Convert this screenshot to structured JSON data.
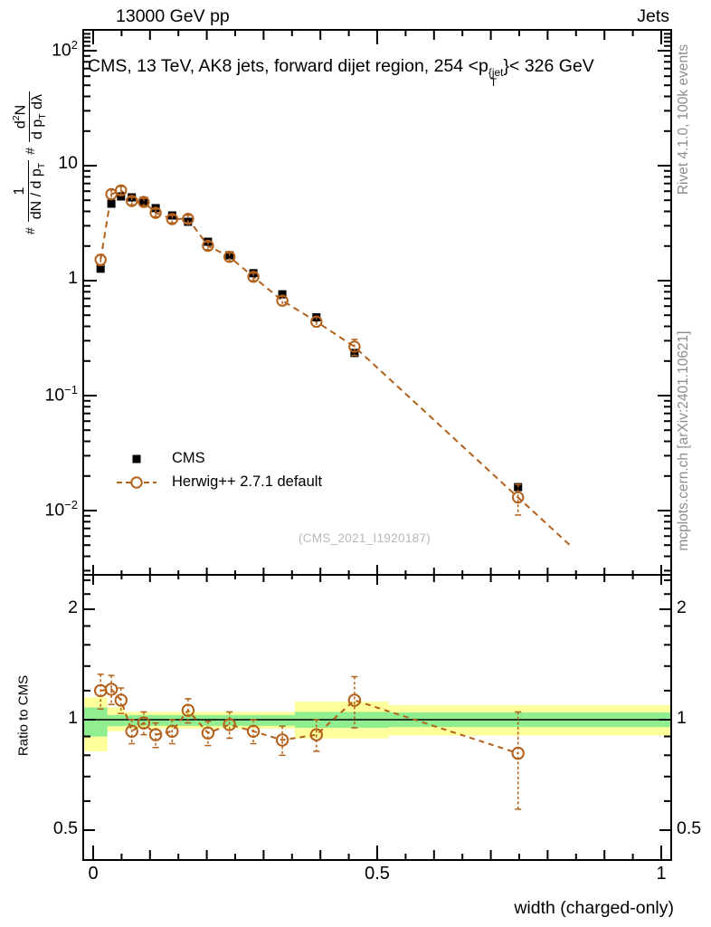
{
  "header": {
    "beam_label": "13000 GeV pp",
    "process_label": "Jets"
  },
  "title": {
    "prefix": "CMS, 13 TeV, AK8 jets, forward dijet region, 254 <p",
    "sup": "{jet",
    "sub": "T",
    "suffix": "}< 326 GeV"
  },
  "axis_label": {
    "hash1": "#",
    "frac1_num": "1",
    "frac1_den": "dN / d p",
    "frac1_den_sub": "T",
    "hash2": "#",
    "frac2_num_a": "d",
    "frac2_num_sup": "2",
    "frac2_num_b": "N",
    "frac2_den_a": "d p",
    "frac2_den_sub": "T",
    "frac2_den_b": " dλ"
  },
  "right_labels": {
    "rivet": "Rivet 4.1.0,  100k events",
    "mcplots": "mcplots.cern.ch [arXiv:2401.10621]"
  },
  "legend": {
    "cms": "CMS",
    "herwig": "Herwig++ 2.7.1 default"
  },
  "watermark": "(CMS_2021_I1920187)",
  "ratio_axis_label": "Ratio to CMS",
  "xaxis_title": "width (charged-only)",
  "chart_data": {
    "type": "line",
    "title": "CMS, 13 TeV, AK8 jets, forward dijet region, 254 < pT(jet) < 326 GeV",
    "xlabel": "width (charged-only)",
    "ylabel": "# 1/(dN/dpT) # d2N/(dpT dLambda)",
    "x_range": [
      0,
      1
    ],
    "y_scale": "log",
    "main_y_range": [
      0.0028,
      150
    ],
    "ratio_y_range": [
      0.414,
      2.48
    ],
    "x": [
      0.013,
      0.032,
      0.049,
      0.068,
      0.089,
      0.11,
      0.139,
      0.167,
      0.202,
      0.24,
      0.282,
      0.333,
      0.393,
      0.46,
      0.748
    ],
    "series": [
      {
        "name": "CMS",
        "marker": "filled-square",
        "color": "#000000",
        "values": [
          1.27,
          4.67,
          5.4,
          5.3,
          4.93,
          4.27,
          3.69,
          3.25,
          2.18,
          1.66,
          1.16,
          0.76,
          0.48,
          0.235,
          0.016
        ]
      },
      {
        "name": "Herwig++ 2.7.1 default",
        "marker": "open-circle",
        "line": "dashed",
        "color": "#b3601a",
        "values": [
          1.52,
          5.65,
          6.1,
          4.93,
          4.83,
          3.89,
          3.43,
          3.45,
          2.01,
          1.61,
          1.08,
          0.67,
          0.44,
          0.266,
          0.013
        ]
      }
    ],
    "ratio": {
      "name": "Herwig++ / CMS",
      "values": [
        1.2,
        1.21,
        1.13,
        0.93,
        0.98,
        0.91,
        0.93,
        1.06,
        0.92,
        0.97,
        0.93,
        0.88,
        0.91,
        1.13,
        0.81
      ],
      "errors": [
        0.13,
        0.11,
        0.09,
        0.07,
        0.07,
        0.07,
        0.07,
        0.08,
        0.07,
        0.08,
        0.07,
        0.08,
        0.09,
        0.18,
        0.24
      ]
    },
    "bands": [
      {
        "x0": 0,
        "x1": 0.025,
        "yellow": [
          0.82,
          1.15
        ],
        "green": [
          0.9,
          1.08
        ]
      },
      {
        "x0": 0.025,
        "x1": 0.055,
        "yellow": [
          0.93,
          1.08
        ],
        "green": [
          0.96,
          1.03
        ]
      },
      {
        "x0": 0.055,
        "x1": 0.355,
        "yellow": [
          0.945,
          1.05
        ],
        "green": [
          0.962,
          1.03
        ]
      },
      {
        "x0": 0.355,
        "x1": 0.52,
        "yellow": [
          0.89,
          1.12
        ],
        "green": [
          0.95,
          1.05
        ]
      },
      {
        "x0": 0.52,
        "x1": 1,
        "yellow": [
          0.905,
          1.095
        ],
        "green": [
          0.955,
          1.047
        ]
      }
    ],
    "ticks": {
      "x_major": [
        0,
        0.5,
        1
      ],
      "x_major_labels": [
        "0",
        "0.5",
        "1"
      ],
      "main_y_major": [
        100,
        10,
        1,
        0.1,
        0.01
      ],
      "main_y_labels": [
        {
          "m": "10",
          "e": "2"
        },
        {
          "m": "10",
          "e": ""
        },
        {
          "m": "1",
          "e": ""
        },
        {
          "m": "10",
          "e": "−1"
        },
        {
          "m": "10",
          "e": "−2"
        }
      ],
      "ratio_y_major": [
        2,
        1,
        0.5
      ],
      "ratio_y_labels": [
        "2",
        "1",
        "0.5"
      ]
    },
    "colors": {
      "herwig": "#b3601a",
      "band_yellow": "#ffff9c",
      "band_green": "#90ee90",
      "reference_line": "#000000",
      "gray_text": "#8d8d8d",
      "watermark": "#b8b8b8"
    }
  }
}
